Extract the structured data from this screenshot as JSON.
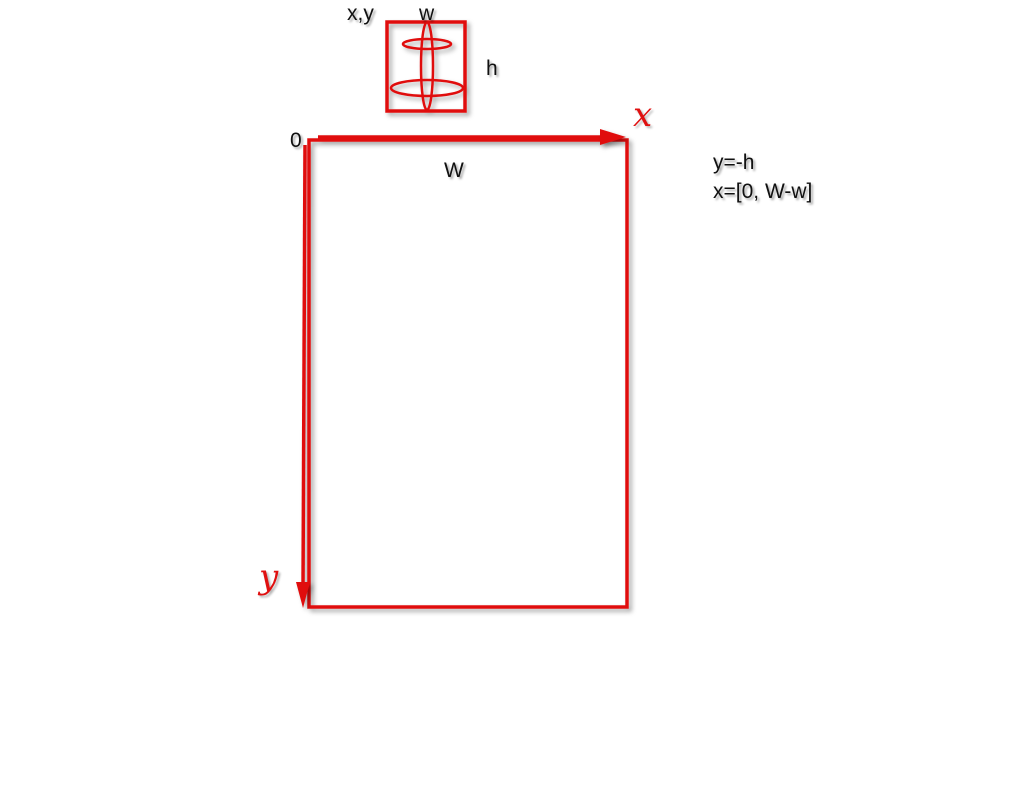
{
  "labels": {
    "object_position": "x,y",
    "object_width": "w",
    "object_height": "h",
    "origin": "0",
    "container_width": "W",
    "x_axis": "x",
    "y_axis": "y"
  },
  "equations": [
    "y=-h",
    "x=[0, W-w]"
  ],
  "colors": {
    "stroke": "#e01010",
    "text": "#111111",
    "background": "#ffffff"
  }
}
